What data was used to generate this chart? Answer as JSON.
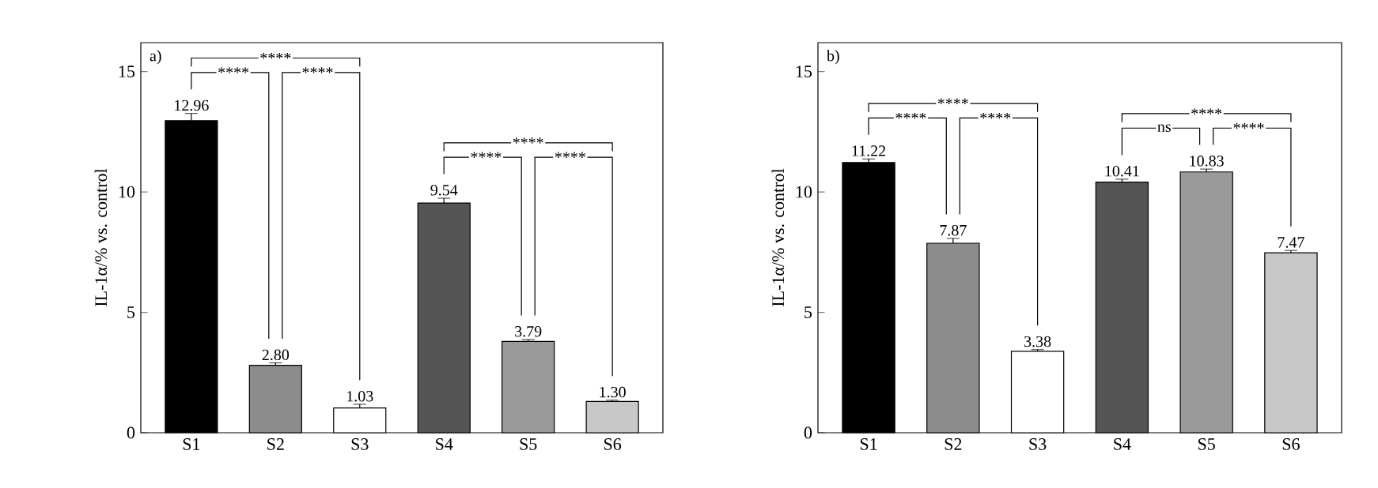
{
  "chart_data": [
    {
      "type": "bar",
      "title": "a)",
      "ylabel": "IL-1α/% vs. control",
      "categories": [
        "S1",
        "S2",
        "S3",
        "S4",
        "S5",
        "S6"
      ],
      "values": [
        12.96,
        2.8,
        1.03,
        9.54,
        3.79,
        1.3
      ],
      "errors": [
        0.3,
        0.1,
        0.15,
        0.2,
        0.08,
        0.05
      ],
      "value_labels": [
        "12.96",
        "2.80",
        "1.03",
        "9.54",
        "3.79",
        "1.30"
      ],
      "colors": [
        "#000000",
        "#8c8c8c",
        "#ffffff",
        "#555555",
        "#9a9a9a",
        "#c8c8c8"
      ],
      "ylim": [
        0,
        16.2
      ],
      "yticks": [
        0,
        5,
        10,
        15
      ],
      "annotations": [
        "****",
        "****",
        "****",
        "****",
        "****",
        "****"
      ]
    },
    {
      "type": "bar",
      "title": "b)",
      "ylabel": "IL-1α/% vs. control",
      "categories": [
        "S1",
        "S2",
        "S3",
        "S4",
        "S5",
        "S6"
      ],
      "values": [
        11.22,
        7.87,
        3.38,
        10.41,
        10.83,
        7.47
      ],
      "errors": [
        0.15,
        0.2,
        0.07,
        0.12,
        0.12,
        0.1
      ],
      "value_labels": [
        "11.22",
        "7.87",
        "3.38",
        "10.41",
        "10.83",
        "7.47"
      ],
      "colors": [
        "#000000",
        "#8c8c8c",
        "#ffffff",
        "#555555",
        "#9a9a9a",
        "#c8c8c8"
      ],
      "ylim": [
        0,
        16.2
      ],
      "yticks": [
        0,
        5,
        10,
        15
      ],
      "annotations": [
        "****",
        "****",
        "****",
        "****",
        "ns",
        "****"
      ]
    }
  ]
}
